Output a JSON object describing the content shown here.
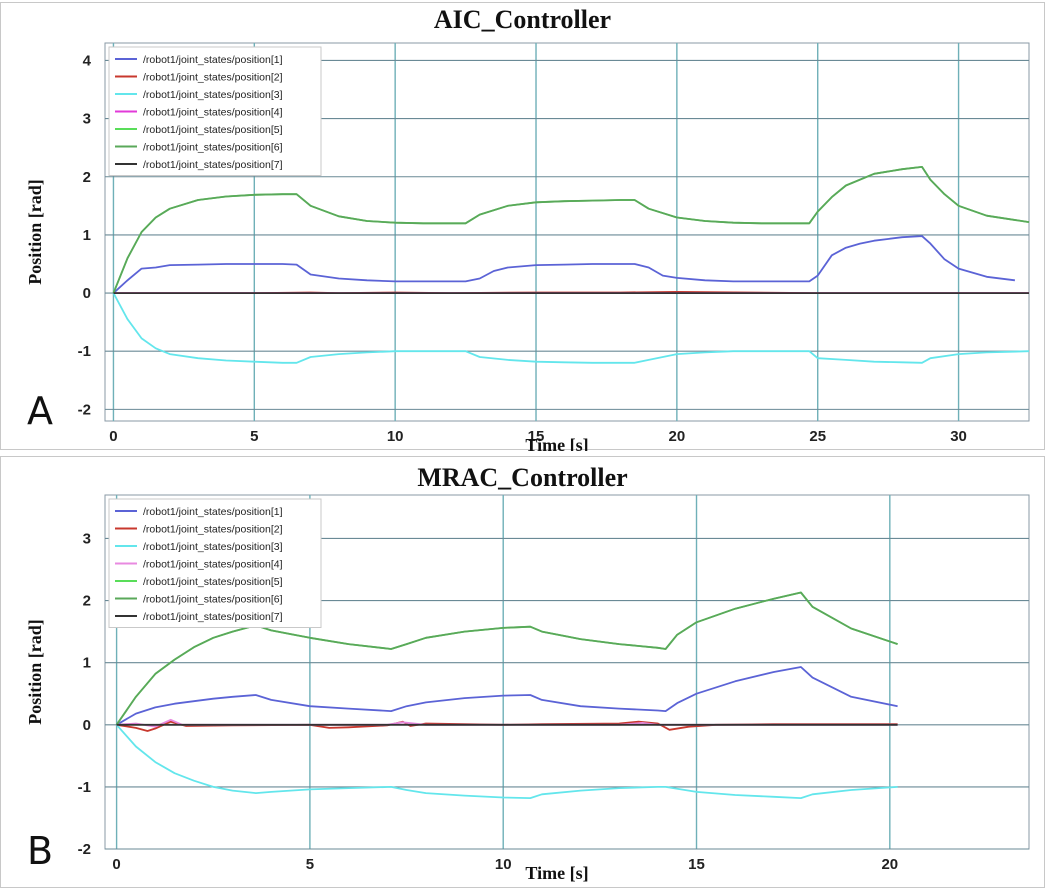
{
  "chart_data": [
    {
      "type": "line",
      "panel_label": "A",
      "title": "AIC_Controller",
      "xlabel": "Time [s]",
      "ylabel": "Position [rad]",
      "xlim": [
        -0.3,
        32.5
      ],
      "ylim": [
        -2.2,
        4.3
      ],
      "xticks": [
        0,
        5,
        10,
        15,
        20,
        25,
        30
      ],
      "yticks": [
        -2,
        -1,
        0,
        1,
        2,
        3,
        4
      ],
      "grid": true,
      "legend_position": "top-left",
      "series": [
        {
          "name": "/robot1/joint_states/position[1]",
          "color": "#5b63d6",
          "x": [
            0,
            0.5,
            1,
            1.5,
            2,
            3,
            4,
            5,
            6,
            6.5,
            7,
            8,
            9,
            10,
            11,
            12,
            12.5,
            13,
            13.5,
            14,
            15,
            16,
            17,
            18,
            18.5,
            19,
            19.5,
            20,
            21,
            22,
            23,
            24,
            24.7,
            25,
            25.5,
            26,
            26.5,
            27,
            28,
            28.7,
            29,
            29.5,
            30,
            31,
            32
          ],
          "y": [
            0,
            0.22,
            0.42,
            0.44,
            0.48,
            0.49,
            0.5,
            0.5,
            0.5,
            0.49,
            0.32,
            0.25,
            0.22,
            0.2,
            0.2,
            0.2,
            0.2,
            0.25,
            0.38,
            0.44,
            0.48,
            0.49,
            0.5,
            0.5,
            0.5,
            0.44,
            0.3,
            0.26,
            0.22,
            0.2,
            0.2,
            0.2,
            0.2,
            0.3,
            0.65,
            0.78,
            0.85,
            0.9,
            0.96,
            0.98,
            0.85,
            0.58,
            0.42,
            0.28,
            0.22
          ]
        },
        {
          "name": "/robot1/joint_states/position[2]",
          "color": "#c8382e",
          "x": [
            0,
            5,
            7,
            8,
            10,
            12,
            15,
            18,
            20,
            25,
            30,
            32.5
          ],
          "y": [
            0,
            0,
            0.01,
            0.0,
            0.01,
            0,
            0.01,
            0.01,
            0.02,
            0,
            0,
            0
          ]
        },
        {
          "name": "/robot1/joint_states/position[3]",
          "color": "#63e6ec",
          "x": [
            0,
            0.5,
            1,
            1.5,
            2,
            3,
            4,
            5,
            6,
            6.5,
            7,
            8,
            9,
            10,
            11,
            12,
            12.5,
            13,
            14,
            15,
            16,
            17,
            18,
            18.5,
            19,
            20,
            21,
            22,
            23,
            24,
            24.7,
            25,
            26,
            27,
            28,
            28.7,
            29,
            30,
            31,
            32.5
          ],
          "y": [
            0,
            -0.45,
            -0.78,
            -0.95,
            -1.05,
            -1.12,
            -1.16,
            -1.18,
            -1.2,
            -1.2,
            -1.1,
            -1.05,
            -1.02,
            -1.0,
            -1.0,
            -1.0,
            -1.0,
            -1.1,
            -1.15,
            -1.18,
            -1.19,
            -1.2,
            -1.2,
            -1.2,
            -1.15,
            -1.05,
            -1.02,
            -1.0,
            -1.0,
            -1.0,
            -1.0,
            -1.12,
            -1.15,
            -1.18,
            -1.19,
            -1.2,
            -1.12,
            -1.05,
            -1.02,
            -1.0
          ]
        },
        {
          "name": "/robot1/joint_states/position[4]",
          "color": "#e23ad8",
          "x": [
            0,
            32.5
          ],
          "y": [
            0,
            0
          ]
        },
        {
          "name": "/robot1/joint_states/position[5]",
          "color": "#59dd59",
          "x": [
            0,
            0.5,
            1,
            1.5,
            2,
            3,
            4,
            5,
            6,
            6.5,
            7,
            8,
            9,
            10,
            11,
            12,
            12.5,
            13,
            14,
            15,
            16,
            17,
            18,
            18.5,
            19,
            20,
            21,
            22,
            23,
            24,
            24.7,
            25,
            25.5,
            26,
            27,
            28,
            28.7,
            29,
            29.5,
            30,
            31,
            32.5
          ],
          "y": [
            0,
            0.6,
            1.05,
            1.3,
            1.45,
            1.6,
            1.66,
            1.69,
            1.7,
            1.7,
            1.5,
            1.32,
            1.24,
            1.21,
            1.2,
            1.2,
            1.2,
            1.35,
            1.5,
            1.56,
            1.58,
            1.59,
            1.6,
            1.6,
            1.45,
            1.3,
            1.24,
            1.21,
            1.2,
            1.2,
            1.2,
            1.4,
            1.65,
            1.85,
            2.05,
            2.13,
            2.17,
            1.95,
            1.7,
            1.5,
            1.33,
            1.22
          ]
        },
        {
          "name": "/robot1/joint_states/position[6]",
          "color": "#5aa85a",
          "x": [
            0,
            0.5,
            1,
            1.5,
            2,
            3,
            4,
            5,
            6,
            6.5,
            7,
            8,
            9,
            10,
            11,
            12,
            12.5,
            13,
            14,
            15,
            16,
            17,
            18,
            18.5,
            19,
            20,
            21,
            22,
            23,
            24,
            24.7,
            25,
            25.5,
            26,
            27,
            28,
            28.7,
            29,
            29.5,
            30,
            31,
            32.5
          ],
          "y": [
            0,
            0.6,
            1.05,
            1.3,
            1.45,
            1.6,
            1.66,
            1.69,
            1.7,
            1.7,
            1.5,
            1.32,
            1.24,
            1.21,
            1.2,
            1.2,
            1.2,
            1.35,
            1.5,
            1.56,
            1.58,
            1.59,
            1.6,
            1.6,
            1.45,
            1.3,
            1.24,
            1.21,
            1.2,
            1.2,
            1.2,
            1.4,
            1.65,
            1.85,
            2.05,
            2.13,
            2.17,
            1.95,
            1.7,
            1.5,
            1.33,
            1.22
          ]
        },
        {
          "name": "/robot1/joint_states/position[7]",
          "color": "#333333",
          "x": [
            0,
            32.5
          ],
          "y": [
            0,
            0
          ]
        }
      ]
    },
    {
      "type": "line",
      "panel_label": "B",
      "title": "MRAC_Controller",
      "xlabel": "Time [s]",
      "ylabel": "Position [rad]",
      "xlim": [
        -0.3,
        23.6
      ],
      "ylim": [
        -2.0,
        3.7
      ],
      "xticks": [
        0,
        5,
        10,
        15,
        20
      ],
      "yticks": [
        -2,
        -1,
        0,
        1,
        2,
        3
      ],
      "grid": true,
      "legend_position": "top-left",
      "series": [
        {
          "name": "/robot1/joint_states/position[1]",
          "color": "#5b63d6",
          "x": [
            0,
            0.5,
            1,
            1.5,
            2,
            2.5,
            3,
            3.6,
            4,
            5,
            6,
            7.1,
            7.5,
            8,
            9,
            10,
            10.7,
            11,
            12,
            13,
            14,
            14.2,
            14.5,
            15,
            16,
            17,
            17.7,
            18,
            19,
            20.2
          ],
          "y": [
            0,
            0.18,
            0.28,
            0.34,
            0.38,
            0.42,
            0.45,
            0.48,
            0.4,
            0.3,
            0.26,
            0.22,
            0.3,
            0.36,
            0.43,
            0.47,
            0.48,
            0.4,
            0.3,
            0.26,
            0.23,
            0.22,
            0.35,
            0.5,
            0.7,
            0.85,
            0.93,
            0.76,
            0.45,
            0.3
          ]
        },
        {
          "name": "/robot1/joint_states/position[2]",
          "color": "#c8382e",
          "x": [
            0,
            0.5,
            0.8,
            1.0,
            1.4,
            1.8,
            3,
            5,
            5.5,
            6,
            7,
            7.4,
            7.6,
            8,
            9,
            10,
            11,
            13,
            13.5,
            14,
            14.3,
            14.8,
            15.5,
            17,
            20.2
          ],
          "y": [
            0,
            -0.05,
            -0.1,
            -0.06,
            0.05,
            -0.02,
            -0.01,
            0.0,
            -0.05,
            -0.04,
            -0.01,
            0.05,
            -0.02,
            0.02,
            0.01,
            0.0,
            0.01,
            0.02,
            0.05,
            0.02,
            -0.08,
            -0.03,
            0.0,
            0.01,
            0.01
          ]
        },
        {
          "name": "/robot1/joint_states/position[3]",
          "color": "#63e6ec",
          "x": [
            0,
            0.5,
            1,
            1.5,
            2,
            2.5,
            3,
            3.6,
            4,
            5,
            6,
            7.1,
            7.5,
            8,
            9,
            10,
            10.7,
            11,
            12,
            13,
            14,
            14.2,
            15,
            16,
            17,
            17.7,
            18,
            19,
            20.2
          ],
          "y": [
            0,
            -0.35,
            -0.6,
            -0.78,
            -0.9,
            -1.0,
            -1.06,
            -1.1,
            -1.08,
            -1.04,
            -1.02,
            -1.0,
            -1.05,
            -1.1,
            -1.14,
            -1.17,
            -1.18,
            -1.12,
            -1.06,
            -1.02,
            -1.0,
            -1.0,
            -1.08,
            -1.13,
            -1.16,
            -1.18,
            -1.12,
            -1.05,
            -1.0
          ]
        },
        {
          "name": "/robot1/joint_states/position[4]",
          "color": "#e88ae0",
          "x": [
            0,
            0.5,
            1.0,
            1.4,
            1.7,
            3,
            7,
            7.4,
            8,
            13,
            13.6,
            14,
            20.2
          ],
          "y": [
            0,
            0.02,
            -0.03,
            0.08,
            0.0,
            0.0,
            0.0,
            0.04,
            0.0,
            0.0,
            0.03,
            0.0,
            0.0
          ]
        },
        {
          "name": "/robot1/joint_states/position[5]",
          "color": "#59dd59",
          "x": [
            0,
            0.5,
            1,
            1.5,
            2,
            2.5,
            3,
            3.6,
            4,
            5,
            6,
            7.1,
            7.5,
            8,
            9,
            10,
            10.7,
            11,
            12,
            13,
            14,
            14.2,
            14.5,
            15,
            16,
            17,
            17.7,
            18,
            19,
            20.2
          ],
          "y": [
            0,
            0.45,
            0.82,
            1.05,
            1.25,
            1.4,
            1.5,
            1.6,
            1.52,
            1.4,
            1.3,
            1.22,
            1.3,
            1.4,
            1.5,
            1.56,
            1.58,
            1.5,
            1.38,
            1.3,
            1.24,
            1.22,
            1.45,
            1.65,
            1.87,
            2.03,
            2.13,
            1.9,
            1.55,
            1.3
          ]
        },
        {
          "name": "/robot1/joint_states/position[6]",
          "color": "#5aa85a",
          "x": [
            0,
            0.5,
            1,
            1.5,
            2,
            2.5,
            3,
            3.6,
            4,
            5,
            6,
            7.1,
            7.5,
            8,
            9,
            10,
            10.7,
            11,
            12,
            13,
            14,
            14.2,
            14.5,
            15,
            16,
            17,
            17.7,
            18,
            19,
            20.2
          ],
          "y": [
            0,
            0.45,
            0.82,
            1.05,
            1.25,
            1.4,
            1.5,
            1.6,
            1.52,
            1.4,
            1.3,
            1.22,
            1.3,
            1.4,
            1.5,
            1.56,
            1.58,
            1.5,
            1.38,
            1.3,
            1.24,
            1.22,
            1.45,
            1.65,
            1.87,
            2.03,
            2.13,
            1.9,
            1.55,
            1.3
          ]
        },
        {
          "name": "/robot1/joint_states/position[7]",
          "color": "#333333",
          "x": [
            0,
            20.2
          ],
          "y": [
            0,
            0
          ]
        }
      ]
    }
  ]
}
